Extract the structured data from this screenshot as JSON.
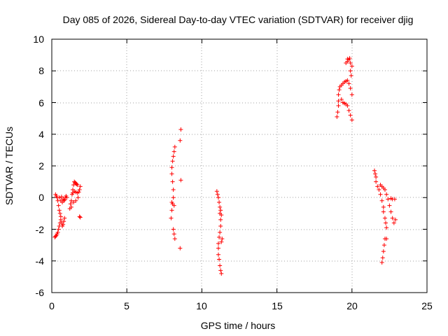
{
  "chart_data": {
    "type": "scatter",
    "title": "Day 085 of 2026, Sidereal Day-to-day VTEC variation (SDTVAR) for receiver djig",
    "xlabel": "GPS time / hours",
    "ylabel": "SDTVAR / TECUs",
    "xlim": [
      0,
      25
    ],
    "ylim": [
      -6,
      10
    ],
    "xticks": [
      0,
      5,
      10,
      15,
      20,
      25
    ],
    "yticks": [
      -6,
      -4,
      -2,
      0,
      2,
      4,
      6,
      8,
      10
    ],
    "grid": true,
    "marker": "+",
    "color": "#ff0000",
    "series": [
      {
        "name": "SDTVAR",
        "points": [
          [
            0.2,
            -2.5
          ],
          [
            0.25,
            -2.45
          ],
          [
            0.3,
            -2.4
          ],
          [
            0.35,
            -2.3
          ],
          [
            0.4,
            -2.2
          ],
          [
            0.45,
            -2.0
          ],
          [
            0.5,
            -1.8
          ],
          [
            0.55,
            -1.6
          ],
          [
            0.6,
            -1.4
          ],
          [
            0.65,
            -1.6
          ],
          [
            0.7,
            -1.8
          ],
          [
            0.75,
            -1.7
          ],
          [
            0.8,
            -1.5
          ],
          [
            0.85,
            -1.3
          ],
          [
            0.25,
            0.2
          ],
          [
            0.3,
            0.1
          ],
          [
            0.35,
            0.0
          ],
          [
            0.4,
            -0.2
          ],
          [
            0.45,
            -0.5
          ],
          [
            0.5,
            -0.8
          ],
          [
            0.55,
            -1.0
          ],
          [
            0.6,
            -1.2
          ],
          [
            0.5,
            0.0
          ],
          [
            0.6,
            -0.2
          ],
          [
            0.7,
            -0.3
          ],
          [
            0.8,
            -0.2
          ],
          [
            0.9,
            0.0
          ],
          [
            0.95,
            0.1
          ],
          [
            0.65,
            0.05
          ],
          [
            0.75,
            -0.1
          ],
          [
            0.85,
            -0.15
          ],
          [
            1.0,
            0.0
          ],
          [
            1.2,
            -0.7
          ],
          [
            1.25,
            -0.4
          ],
          [
            1.3,
            -0.2
          ],
          [
            1.35,
            0.2
          ],
          [
            1.4,
            0.5
          ],
          [
            1.45,
            0.8
          ],
          [
            1.5,
            1.0
          ],
          [
            1.55,
            0.95
          ],
          [
            1.6,
            0.9
          ],
          [
            1.65,
            0.85
          ],
          [
            1.7,
            0.8
          ],
          [
            1.4,
            0.3
          ],
          [
            1.5,
            0.4
          ],
          [
            1.6,
            0.35
          ],
          [
            1.7,
            0.3
          ],
          [
            1.8,
            0.35
          ],
          [
            1.3,
            -0.6
          ],
          [
            1.45,
            -0.3
          ],
          [
            1.6,
            -0.2
          ],
          [
            1.75,
            0.0
          ],
          [
            1.85,
            0.5
          ],
          [
            1.9,
            0.7
          ],
          [
            1.85,
            -1.2
          ],
          [
            1.9,
            -1.25
          ],
          [
            7.95,
            -1.3
          ],
          [
            8.0,
            -0.8
          ],
          [
            8.05,
            -0.4
          ],
          [
            8.1,
            0.0
          ],
          [
            8.1,
            0.5
          ],
          [
            8.05,
            1.0
          ],
          [
            8.0,
            1.5
          ],
          [
            8.0,
            1.9
          ],
          [
            8.05,
            2.3
          ],
          [
            8.1,
            2.6
          ],
          [
            8.15,
            2.9
          ],
          [
            8.2,
            3.2
          ],
          [
            8.1,
            -2.0
          ],
          [
            8.15,
            -2.3
          ],
          [
            8.2,
            -2.6
          ],
          [
            8.0,
            -0.3
          ],
          [
            8.15,
            -0.5
          ],
          [
            8.6,
            4.3
          ],
          [
            8.55,
            3.6
          ],
          [
            8.6,
            1.1
          ],
          [
            8.55,
            -3.2
          ],
          [
            11.0,
            0.4
          ],
          [
            11.05,
            0.2
          ],
          [
            11.1,
            0.0
          ],
          [
            11.15,
            -0.3
          ],
          [
            11.2,
            -0.6
          ],
          [
            11.2,
            -1.0
          ],
          [
            11.25,
            -1.4
          ],
          [
            11.25,
            -1.8
          ],
          [
            11.2,
            -2.2
          ],
          [
            11.15,
            -2.5
          ],
          [
            11.1,
            -2.9
          ],
          [
            11.1,
            -3.2
          ],
          [
            11.1,
            -3.6
          ],
          [
            11.15,
            -3.9
          ],
          [
            11.2,
            -4.3
          ],
          [
            11.25,
            -4.6
          ],
          [
            11.3,
            -4.8
          ],
          [
            11.3,
            -2.8
          ],
          [
            11.35,
            -2.6
          ],
          [
            11.3,
            -1.1
          ],
          [
            11.25,
            -0.8
          ],
          [
            19.0,
            5.1
          ],
          [
            19.05,
            5.4
          ],
          [
            19.1,
            5.8
          ],
          [
            19.1,
            6.1
          ],
          [
            19.1,
            6.5
          ],
          [
            19.15,
            6.8
          ],
          [
            19.2,
            7.0
          ],
          [
            19.3,
            7.1
          ],
          [
            19.4,
            7.2
          ],
          [
            19.5,
            7.3
          ],
          [
            19.6,
            7.35
          ],
          [
            19.7,
            7.4
          ],
          [
            19.8,
            7.2
          ],
          [
            19.9,
            6.9
          ],
          [
            20.0,
            6.5
          ],
          [
            19.3,
            6.2
          ],
          [
            19.4,
            6.0
          ],
          [
            19.5,
            5.95
          ],
          [
            19.6,
            5.9
          ],
          [
            19.7,
            5.8
          ],
          [
            19.8,
            5.5
          ],
          [
            19.9,
            5.2
          ],
          [
            20.0,
            4.9
          ],
          [
            19.6,
            8.5
          ],
          [
            19.7,
            8.6
          ],
          [
            19.8,
            8.7
          ],
          [
            19.9,
            8.5
          ],
          [
            20.0,
            8.3
          ],
          [
            19.85,
            8.8
          ],
          [
            19.7,
            8.75
          ],
          [
            19.9,
            8.0
          ],
          [
            19.95,
            7.7
          ],
          [
            21.5,
            1.7
          ],
          [
            21.55,
            1.5
          ],
          [
            21.6,
            1.3
          ],
          [
            21.6,
            1.0
          ],
          [
            21.7,
            0.7
          ],
          [
            21.8,
            0.5
          ],
          [
            21.9,
            0.2
          ],
          [
            22.0,
            -0.2
          ],
          [
            22.1,
            -0.6
          ],
          [
            22.1,
            -0.9
          ],
          [
            22.2,
            -1.3
          ],
          [
            22.25,
            -1.6
          ],
          [
            22.3,
            -1.9
          ],
          [
            22.2,
            -2.6
          ],
          [
            22.15,
            -3.0
          ],
          [
            22.1,
            -3.4
          ],
          [
            22.05,
            -3.8
          ],
          [
            22.0,
            -4.1
          ],
          [
            22.3,
            -2.6
          ],
          [
            21.9,
            0.8
          ],
          [
            22.0,
            0.7
          ],
          [
            22.1,
            0.6
          ],
          [
            22.2,
            0.5
          ],
          [
            22.3,
            0.2
          ],
          [
            22.4,
            -0.1
          ],
          [
            22.5,
            -0.5
          ],
          [
            22.6,
            -0.9
          ],
          [
            22.7,
            -1.3
          ],
          [
            22.8,
            -1.6
          ],
          [
            22.9,
            -1.4
          ],
          [
            22.85,
            -0.1
          ],
          [
            22.7,
            -0.1
          ],
          [
            22.6,
            -0.05
          ]
        ]
      }
    ]
  }
}
